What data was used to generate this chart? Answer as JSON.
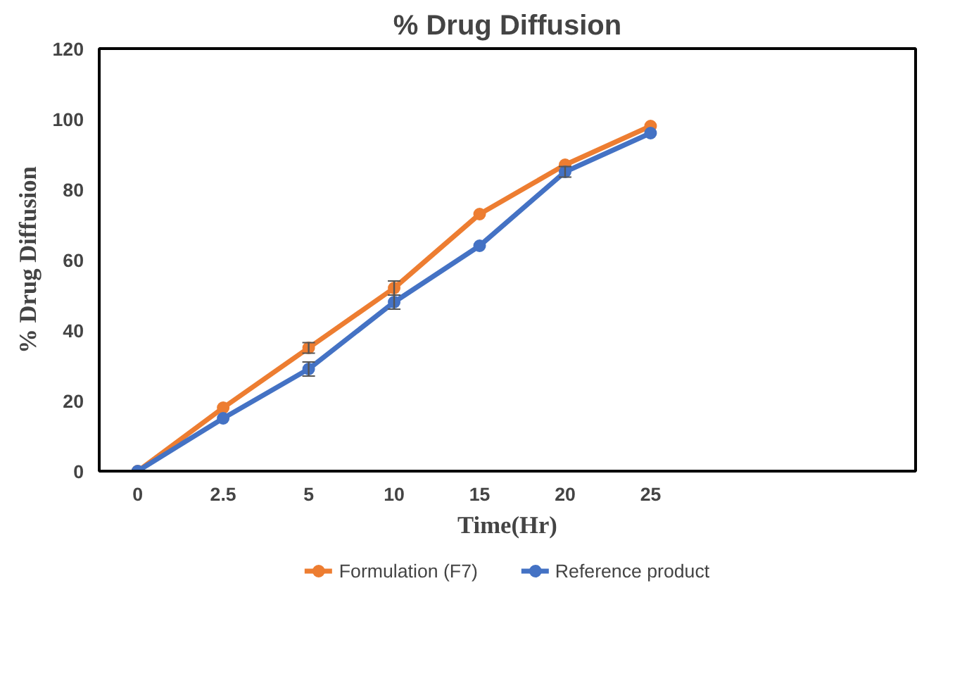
{
  "chart_data": {
    "type": "line",
    "title": "% Drug Diffusion",
    "xlabel": "Time(Hr)",
    "ylabel": "% Drug Diffusion",
    "categories": [
      "0",
      "2.5",
      "5",
      "10",
      "15",
      "20",
      "25"
    ],
    "series": [
      {
        "name": "Formulation (F7)",
        "color": "#ed7d31",
        "values": [
          0,
          18,
          35,
          52,
          73,
          87,
          98
        ],
        "errors": [
          null,
          null,
          1.5,
          2,
          null,
          null,
          null
        ]
      },
      {
        "name": "Reference product",
        "color": "#4472c4",
        "values": [
          0,
          15,
          29,
          48,
          64,
          85,
          96
        ],
        "errors": [
          null,
          null,
          2,
          2,
          null,
          1.5,
          null
        ]
      }
    ],
    "ylim": [
      0,
      120
    ],
    "yticks": [
      0,
      20,
      40,
      60,
      80,
      100,
      120
    ],
    "grid": false,
    "legend": "bottom",
    "marker": "circle",
    "line_style": "solid"
  }
}
